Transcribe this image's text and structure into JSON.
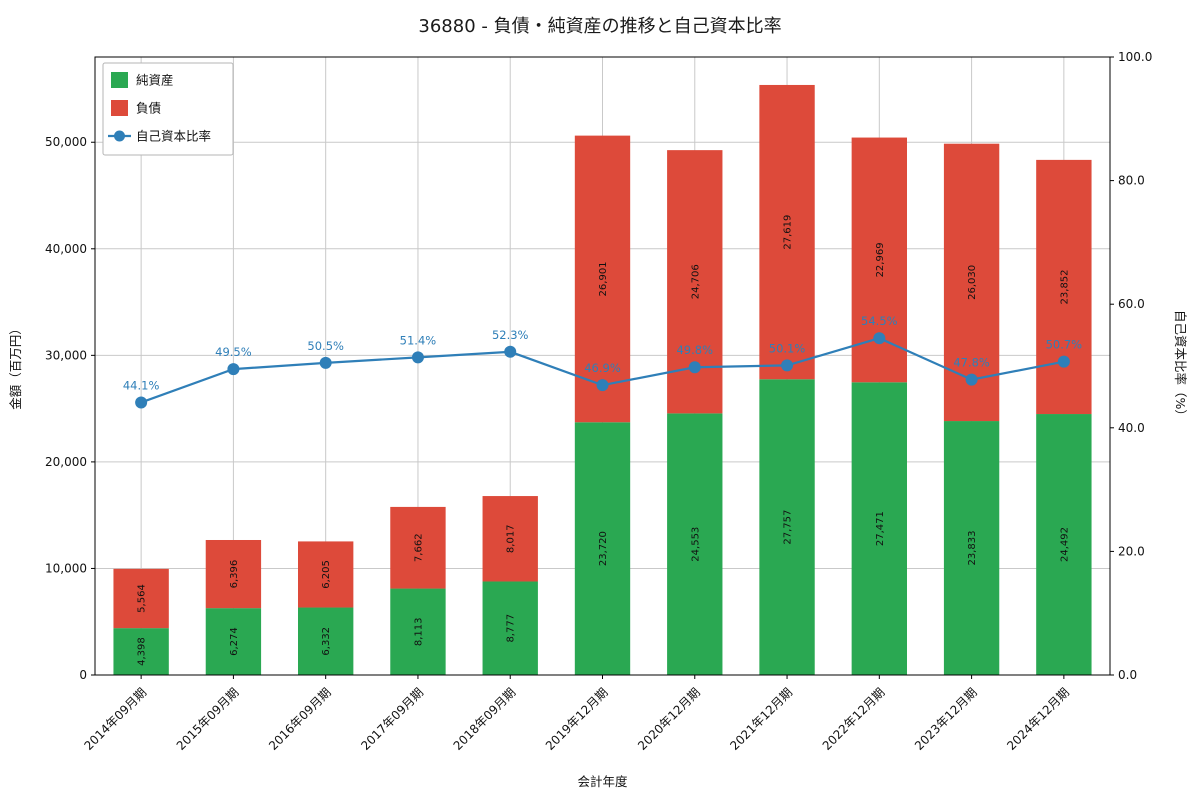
{
  "chart_data": {
    "type": "bar",
    "stacked": true,
    "title": "36880 - 負債・純資産の推移と自己資本比率",
    "xlabel": "会計年度",
    "ylabel_left": "金額（百万円）",
    "ylabel_right": "自己資本比率（%）",
    "categories": [
      "2014年09月期",
      "2015年09月期",
      "2016年09月期",
      "2017年09月期",
      "2018年09月期",
      "2019年12月期",
      "2020年12月期",
      "2021年12月期",
      "2022年12月期",
      "2023年12月期",
      "2024年12月期"
    ],
    "series": [
      {
        "name": "純資産",
        "type": "bar",
        "color": "#2aa852",
        "values": [
          4398,
          6274,
          6332,
          8113,
          8777,
          23720,
          24553,
          27757,
          27471,
          23833,
          24492
        ],
        "labels": [
          "4,398",
          "6,274",
          "6,332",
          "8,113",
          "8,777",
          "23,720",
          "24,553",
          "27,757",
          "27,471",
          "23,833",
          "24,492"
        ]
      },
      {
        "name": "負債",
        "type": "bar",
        "color": "#dd4a3a",
        "values": [
          5564,
          6396,
          6205,
          7662,
          8017,
          26901,
          24706,
          27619,
          22969,
          26030,
          23852
        ],
        "labels": [
          "5,564",
          "6,396",
          "6,205",
          "7,662",
          "8,017",
          "26,901",
          "24,706",
          "27,619",
          "22,969",
          "26,030",
          "23,852"
        ]
      },
      {
        "name": "自己資本比率",
        "type": "line",
        "axis": "right",
        "color": "#2f7fb8",
        "values": [
          44.1,
          49.5,
          50.5,
          51.4,
          52.3,
          46.9,
          49.8,
          50.1,
          54.5,
          47.8,
          50.7
        ],
        "labels": [
          "44.1%",
          "49.5%",
          "50.5%",
          "51.4%",
          "52.3%",
          "46.9%",
          "49.8%",
          "50.1%",
          "54.5%",
          "47.8%",
          "50.7%"
        ]
      }
    ],
    "axes": {
      "left": {
        "min": 0,
        "max": 58000,
        "ticks": [
          0,
          10000,
          20000,
          30000,
          40000,
          50000
        ],
        "tick_labels": [
          "0",
          "10,000",
          "20,000",
          "30,000",
          "40,000",
          "50,000"
        ]
      },
      "right": {
        "min": 0,
        "max": 100,
        "ticks": [
          0,
          20,
          40,
          60,
          80,
          100
        ],
        "tick_labels": [
          "0.0",
          "20.0",
          "40.0",
          "60.0",
          "80.0",
          "100.0"
        ]
      }
    },
    "legend_position": "upper-left",
    "grid": true
  }
}
